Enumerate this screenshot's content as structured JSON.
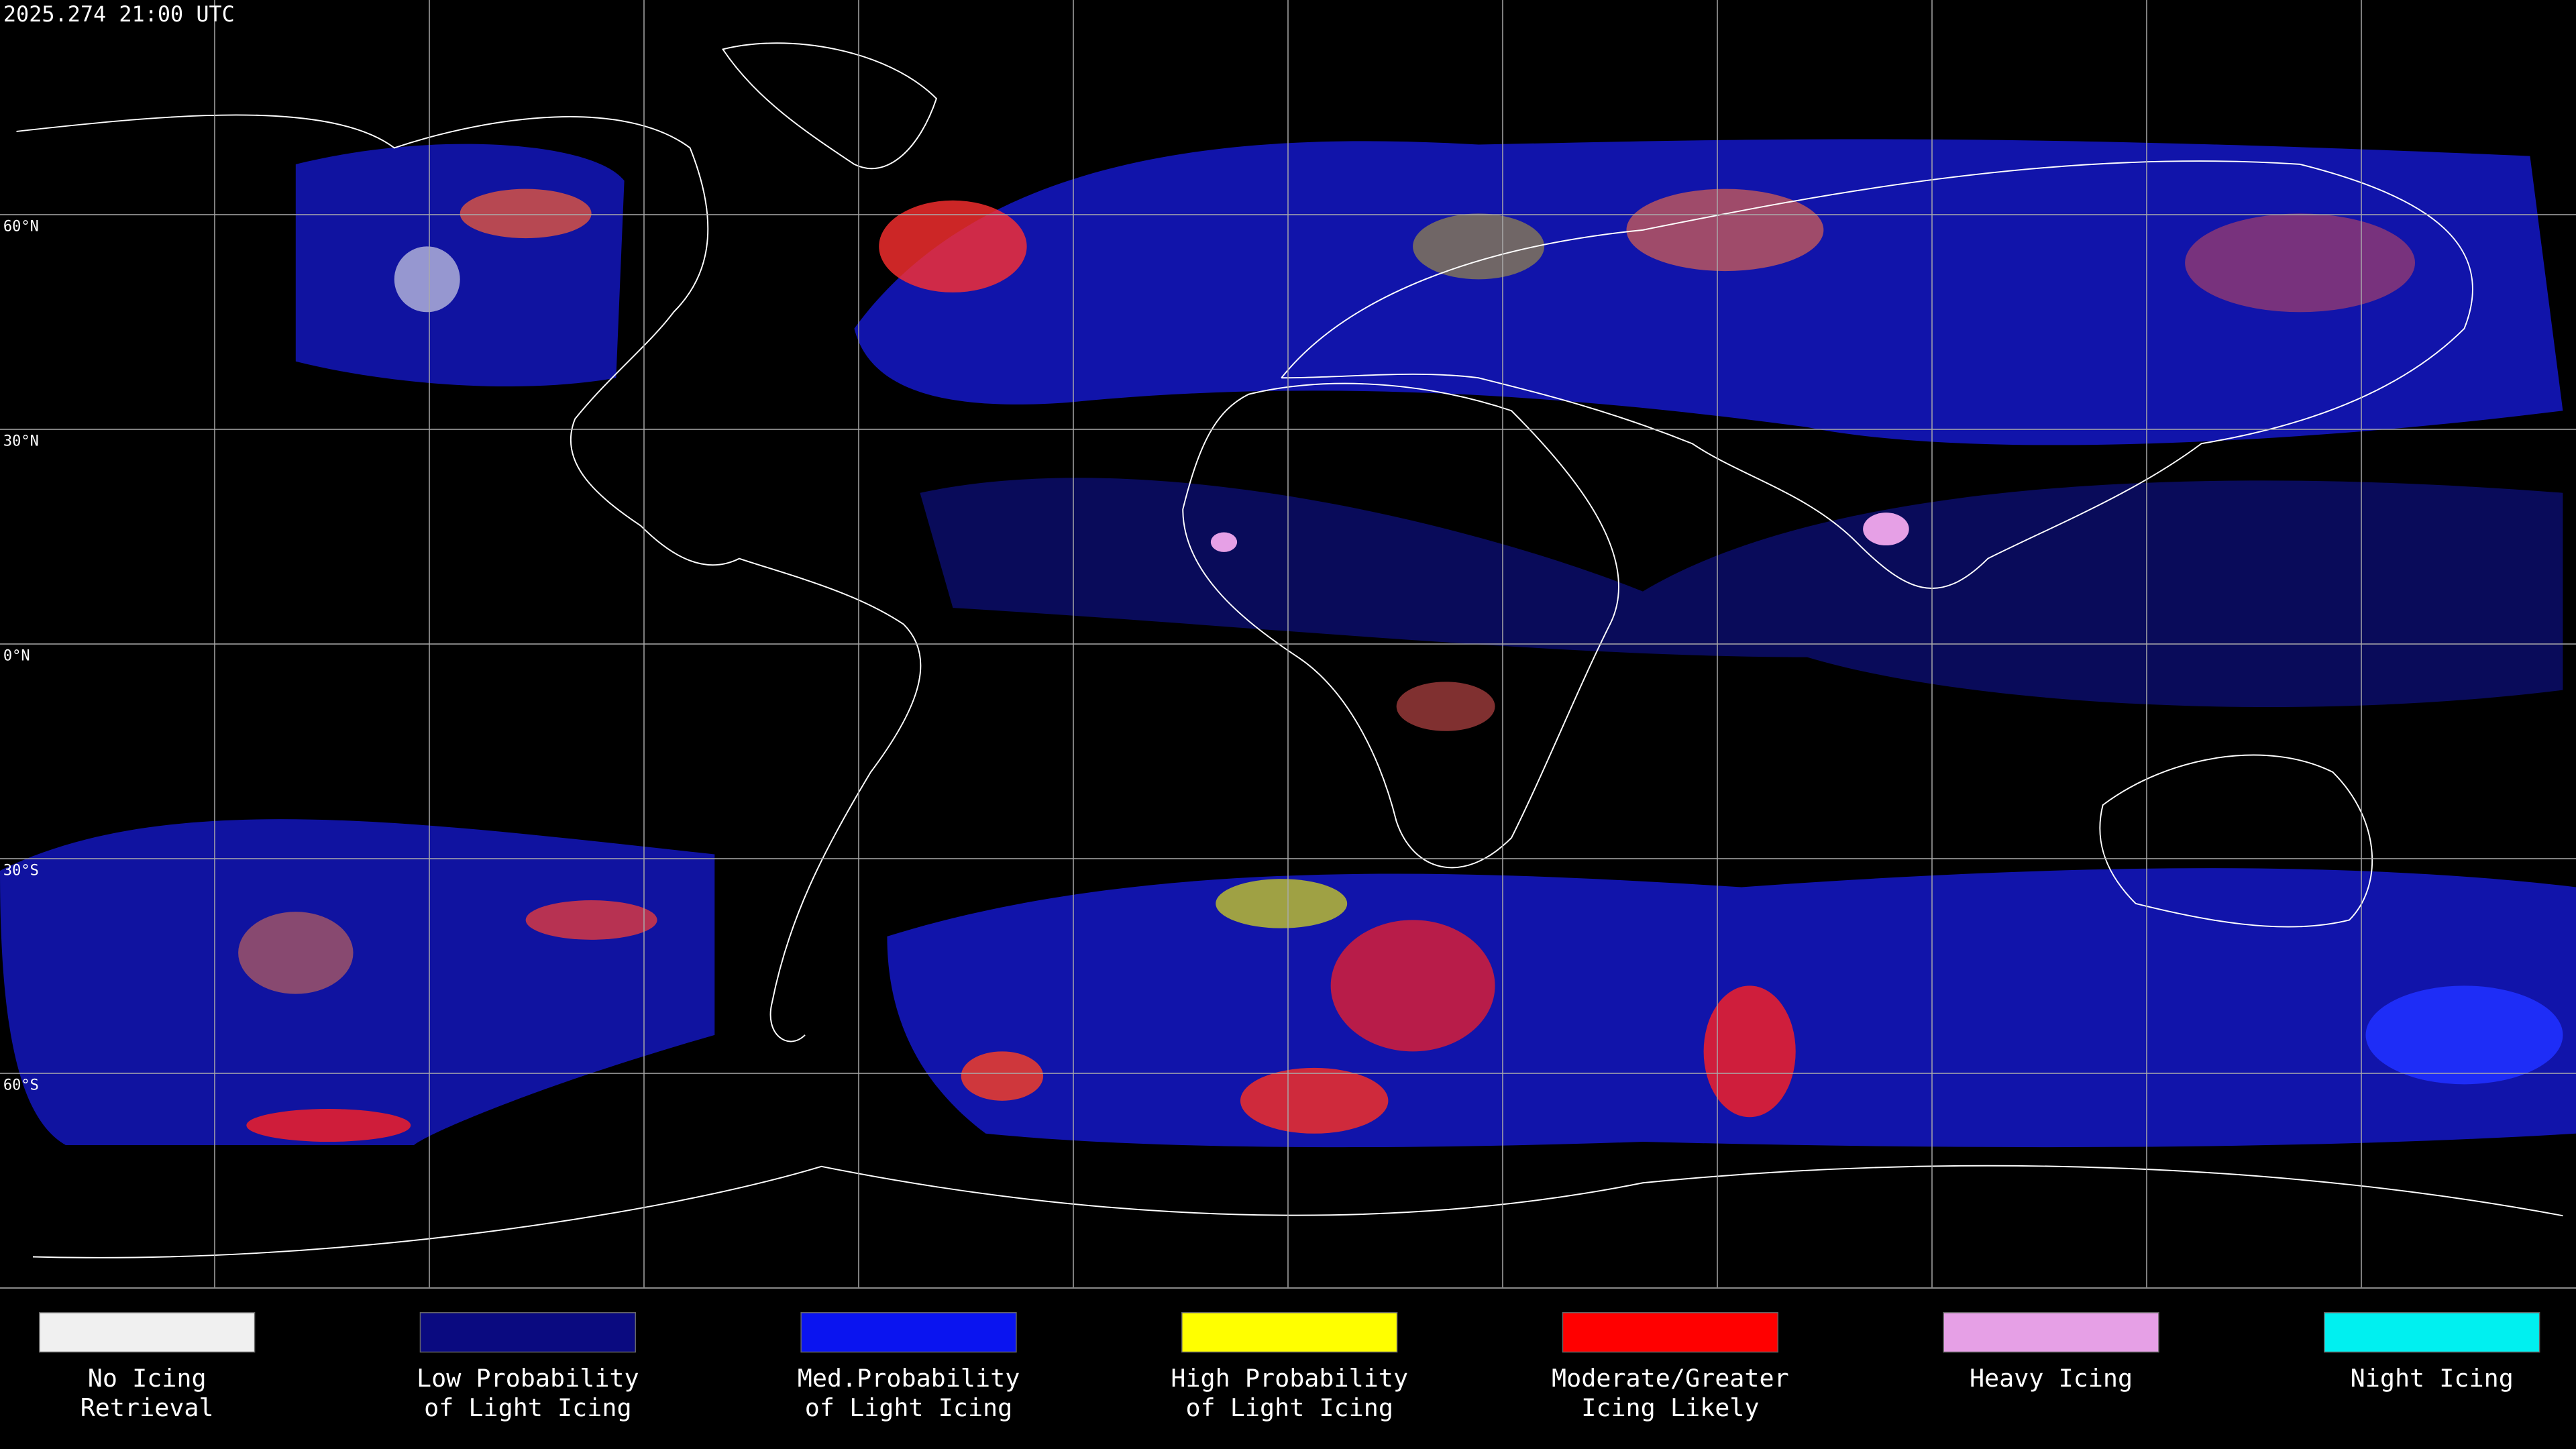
{
  "header": {
    "timestamp": "2025.274 21:00 UTC"
  },
  "map": {
    "lat_labels": [
      "60°N",
      "30°N",
      "0°N",
      "30°S",
      "60°S"
    ]
  },
  "legend": {
    "items": [
      {
        "lines": [
          "No Icing",
          "Retrieval"
        ],
        "color": "#f0f0f0"
      },
      {
        "lines": [
          "Low Probability",
          "of Light Icing"
        ],
        "color": "#0a0a80"
      },
      {
        "lines": [
          "Med.Probability",
          "of Light Icing"
        ],
        "color": "#0a14f0"
      },
      {
        "lines": [
          "High Probability",
          "of Light Icing"
        ],
        "color": "#ffff00"
      },
      {
        "lines": [
          "Moderate/Greater",
          "Icing Likely"
        ],
        "color": "#ff0000"
      },
      {
        "lines": [
          "Heavy Icing"
        ],
        "color": "#e6a0e6"
      },
      {
        "lines": [
          "Night Icing"
        ],
        "color": "#00f0f0"
      }
    ]
  }
}
